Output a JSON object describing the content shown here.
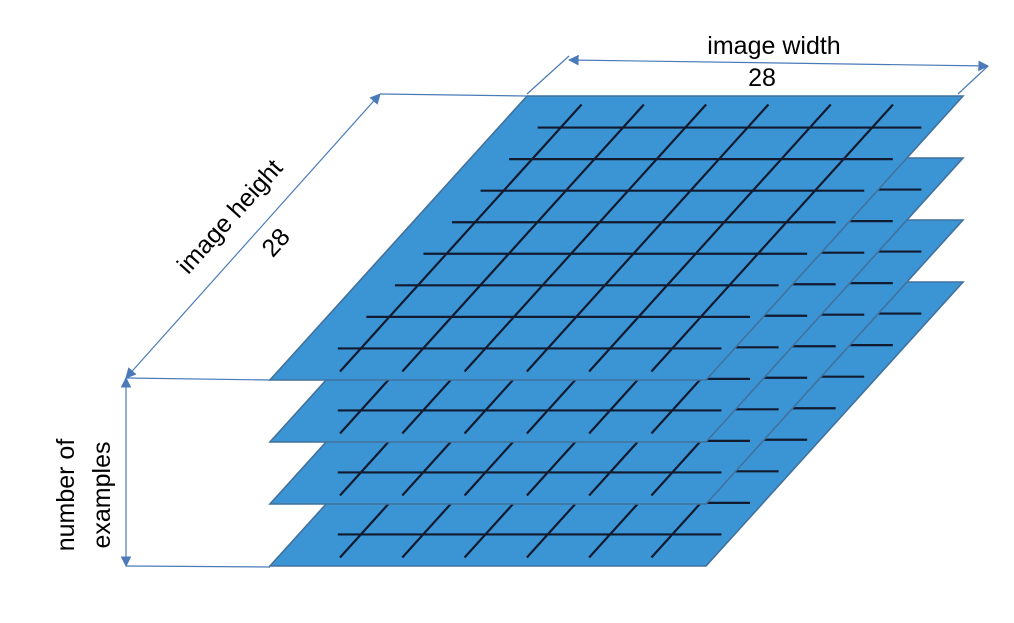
{
  "labels": {
    "image_width": "image width",
    "image_width_value": "28",
    "image_height": "image height",
    "image_height_value": "28",
    "number_of_examples_line1": "number of",
    "number_of_examples_line2": "examples"
  },
  "colors": {
    "layer_fill": "#3b95d5",
    "layer_edge": "#41719c",
    "grid_line": "#111a2e",
    "dimension_line": "#4a7ab8",
    "background": "#ffffff"
  },
  "layers": {
    "count": 4,
    "grid_rows_drawn": 9,
    "grid_columns_drawn": 7
  }
}
